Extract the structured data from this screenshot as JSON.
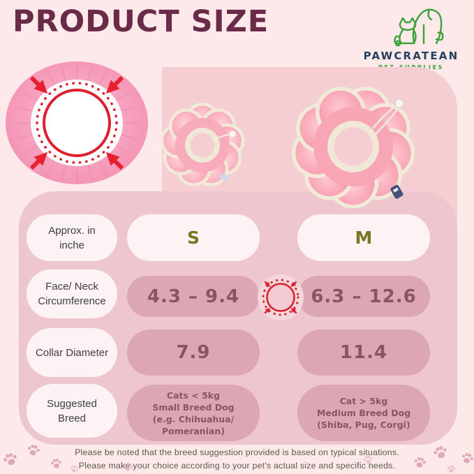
{
  "title": "PRODUCT SIZE",
  "logo": {
    "brand": "PAWCRATEAN",
    "tagline": "PET SUPPLIES"
  },
  "table": {
    "columns": {
      "s": "S",
      "m": "M"
    },
    "rows": {
      "approx": {
        "label_lines": [
          "Approx. in",
          "inche"
        ]
      },
      "circumference": {
        "label_lines": [
          "Face/ Neck",
          "Circumference"
        ],
        "s": "4.3 – 9.4",
        "m": "6.3 – 12.6"
      },
      "diameter": {
        "label_lines": [
          "Collar Diameter"
        ],
        "s": "7.9",
        "m": "11.4"
      },
      "breed": {
        "label_lines": [
          "Suggested",
          "Breed"
        ],
        "s_lines": [
          "Cats < 5kg",
          "Small Breed Dog",
          "(e.g. Chihuahua/",
          "Pomeranian)"
        ],
        "m_lines": [
          "Cat > 5kg",
          "Medium Breed Dog",
          "(Shiba, Pug, Corgi)"
        ]
      }
    }
  },
  "footer": {
    "line1": "Please be noted that the breed suggestion provided is based on typical situations.",
    "line2": "Please make your choice according to your pet's actual size and specific needs."
  },
  "colors": {
    "page_bg": "#fde9e9",
    "panel_upper": "#f5ced4",
    "panel_table": "#eec7ce",
    "pill_light": "#fdf2f4",
    "pill_value": "#dca7b3",
    "value_text": "#8c5266",
    "size_letter_olive": "#7b7524",
    "title_maroon": "#6a2b49",
    "accent_red": "#e0202e",
    "brand_navy": "#24415f",
    "brand_green": "#3aa23a"
  }
}
